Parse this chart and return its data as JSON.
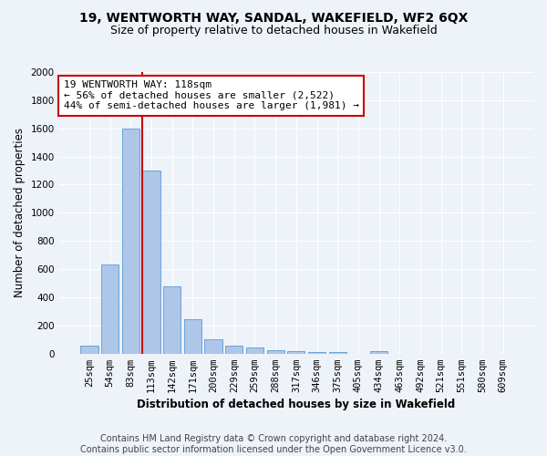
{
  "title": "19, WENTWORTH WAY, SANDAL, WAKEFIELD, WF2 6QX",
  "subtitle": "Size of property relative to detached houses in Wakefield",
  "xlabel": "Distribution of detached houses by size in Wakefield",
  "ylabel": "Number of detached properties",
  "categories": [
    "25sqm",
    "54sqm",
    "83sqm",
    "113sqm",
    "142sqm",
    "171sqm",
    "200sqm",
    "229sqm",
    "259sqm",
    "288sqm",
    "317sqm",
    "346sqm",
    "375sqm",
    "405sqm",
    "434sqm",
    "463sqm",
    "492sqm",
    "521sqm",
    "551sqm",
    "580sqm",
    "609sqm"
  ],
  "values": [
    55,
    630,
    1600,
    1300,
    480,
    245,
    100,
    55,
    42,
    25,
    18,
    12,
    8,
    0,
    18,
    0,
    0,
    0,
    0,
    0,
    0
  ],
  "bar_color": "#aec6e8",
  "bar_edgecolor": "#5b9bd5",
  "vline_x": 3,
  "annotation_line1": "19 WENTWORTH WAY: 118sqm",
  "annotation_line2": "← 56% of detached houses are smaller (2,522)",
  "annotation_line3": "44% of semi-detached houses are larger (1,981) →",
  "annotation_box_color": "#ffffff",
  "annotation_box_edgecolor": "#cc0000",
  "vline_color": "#cc0000",
  "ylim": [
    0,
    2000
  ],
  "yticks": [
    0,
    200,
    400,
    600,
    800,
    1000,
    1200,
    1400,
    1600,
    1800,
    2000
  ],
  "footer_line1": "Contains HM Land Registry data © Crown copyright and database right 2024.",
  "footer_line2": "Contains public sector information licensed under the Open Government Licence v3.0.",
  "background_color": "#eef2f9",
  "grid_color": "#ffffff",
  "title_fontsize": 10,
  "subtitle_fontsize": 9,
  "axis_label_fontsize": 8.5,
  "tick_fontsize": 7.5,
  "annotation_fontsize": 8,
  "footer_fontsize": 7
}
